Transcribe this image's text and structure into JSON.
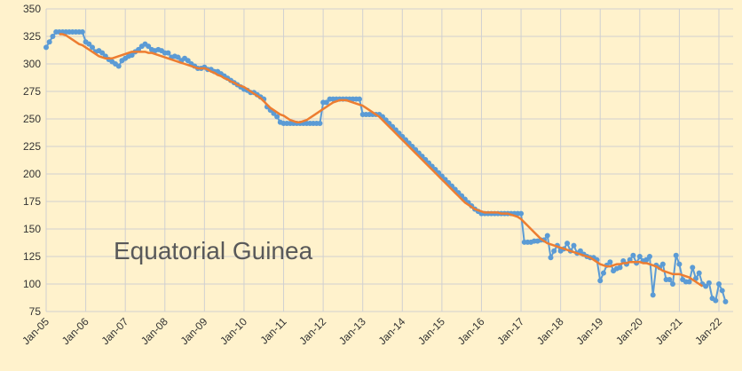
{
  "chart_data": {
    "type": "line",
    "annotation": "Equatorial Guinea",
    "categories": [
      "Jan-05",
      null,
      null,
      null,
      null,
      null,
      null,
      null,
      null,
      null,
      null,
      null,
      "Jan-06",
      null,
      null,
      null,
      null,
      null,
      null,
      null,
      null,
      null,
      null,
      null,
      "Jan-07",
      null,
      null,
      null,
      null,
      null,
      null,
      null,
      null,
      null,
      null,
      null,
      "Jan-08",
      null,
      null,
      null,
      null,
      null,
      null,
      null,
      null,
      null,
      null,
      null,
      "Jan-09",
      null,
      null,
      null,
      null,
      null,
      null,
      null,
      null,
      null,
      null,
      null,
      "Jan-10",
      null,
      null,
      null,
      null,
      null,
      null,
      null,
      null,
      null,
      null,
      null,
      "Jan-11",
      null,
      null,
      null,
      null,
      null,
      null,
      null,
      null,
      null,
      null,
      null,
      "Jan-12",
      null,
      null,
      null,
      null,
      null,
      null,
      null,
      null,
      null,
      null,
      null,
      "Jan-13",
      null,
      null,
      null,
      null,
      null,
      null,
      null,
      null,
      null,
      null,
      null,
      "Jan-14",
      null,
      null,
      null,
      null,
      null,
      null,
      null,
      null,
      null,
      null,
      null,
      "Jan-15",
      null,
      null,
      null,
      null,
      null,
      null,
      null,
      null,
      null,
      null,
      null,
      "Jan-16",
      null,
      null,
      null,
      null,
      null,
      null,
      null,
      null,
      null,
      null,
      null,
      "Jan-17",
      null,
      null,
      null,
      null,
      null,
      null,
      null,
      null,
      null,
      null,
      null,
      "Jan-18",
      null,
      null,
      null,
      null,
      null,
      null,
      null,
      null,
      null,
      null,
      null,
      "Jan-19",
      null,
      null,
      null,
      null,
      null,
      null,
      null,
      null,
      null,
      null,
      null,
      "Jan-20",
      null,
      null,
      null,
      null,
      null,
      null,
      null,
      null,
      null,
      null,
      null,
      "Jan-21",
      null,
      null,
      null,
      null,
      null,
      null,
      null,
      null,
      null,
      null,
      null,
      "Jan-22",
      null,
      null
    ],
    "series": [
      {
        "color": "#5b9bd5",
        "markers": true,
        "values": [
          315,
          320,
          325,
          329,
          329,
          329,
          329,
          329,
          329,
          329,
          329,
          329,
          320,
          318,
          315,
          311,
          312,
          310,
          307,
          304,
          302,
          300,
          298,
          303,
          305,
          307,
          308,
          311,
          313,
          316,
          318,
          316,
          313,
          312,
          313,
          312,
          310,
          310,
          306,
          307,
          306,
          303,
          305,
          303,
          300,
          298,
          296,
          296,
          297,
          295,
          295,
          293,
          293,
          291,
          289,
          287,
          285,
          283,
          281,
          279,
          277,
          276,
          274,
          274,
          272,
          270,
          268,
          261,
          258,
          255,
          252,
          247,
          246,
          246,
          246,
          246,
          246,
          246,
          246,
          246,
          246,
          246,
          246,
          246,
          265,
          265,
          268,
          268,
          268,
          268,
          268,
          268,
          268,
          268,
          268,
          268,
          254,
          254,
          254,
          254,
          254,
          254,
          252,
          249,
          246,
          243,
          240,
          237,
          234,
          231,
          228,
          225,
          222,
          219,
          216,
          213,
          210,
          207,
          204,
          201,
          198,
          195,
          192,
          189,
          186,
          183,
          180,
          177,
          174,
          171,
          168,
          166,
          164,
          164,
          164,
          164,
          164,
          164,
          164,
          164,
          164,
          164,
          164,
          164,
          164,
          138,
          138,
          138,
          139,
          139,
          140,
          140,
          144,
          124,
          130,
          135,
          130,
          132,
          137,
          130,
          135,
          128,
          130,
          127,
          125,
          124,
          124,
          122,
          103,
          110,
          117,
          120,
          112,
          114,
          115,
          121,
          118,
          122,
          126,
          119,
          125,
          121,
          122,
          125,
          90,
          117,
          115,
          118,
          104,
          104,
          100,
          126,
          118,
          104,
          102,
          102,
          115,
          105,
          110,
          100,
          98,
          101,
          87,
          85,
          100,
          94,
          84
        ]
      },
      {
        "color": "#ed7d31",
        "markers": false,
        "values": [
          null,
          null,
          null,
          null,
          327,
          327,
          326,
          324,
          322,
          320,
          318,
          317,
          315,
          313,
          311,
          309,
          307,
          306,
          305,
          305,
          305,
          306,
          307,
          308,
          309,
          310,
          311,
          311,
          311,
          311,
          311,
          310,
          310,
          309,
          308,
          307,
          306,
          305,
          304,
          303,
          302,
          301,
          300,
          299,
          298,
          297,
          296,
          296,
          296,
          295,
          293,
          292,
          290,
          289,
          287,
          286,
          284,
          283,
          281,
          280,
          279,
          277,
          275,
          273,
          271,
          269,
          266,
          263,
          260,
          258,
          256,
          254,
          253,
          251,
          249,
          248,
          247,
          247,
          248,
          249,
          251,
          253,
          255,
          257,
          259,
          261,
          263,
          265,
          266,
          267,
          267,
          267,
          266,
          265,
          264,
          263,
          262,
          260,
          258,
          256,
          254,
          252,
          249,
          246,
          243,
          240,
          237,
          234,
          231,
          228,
          225,
          222,
          219,
          216,
          213,
          210,
          207,
          204,
          201,
          198,
          195,
          192,
          189,
          186,
          183,
          180,
          177,
          174,
          172,
          170,
          168,
          167,
          166,
          165,
          165,
          165,
          165,
          165,
          164,
          164,
          164,
          163,
          162,
          161,
          159,
          156,
          153,
          150,
          147,
          144,
          141,
          139,
          137,
          136,
          135,
          134,
          133,
          132,
          131,
          130,
          129,
          128,
          127,
          126,
          125,
          124,
          122,
          120,
          118,
          117,
          116,
          116,
          117,
          118,
          118,
          119,
          119,
          120,
          120,
          120,
          120,
          119,
          119,
          118,
          117,
          116,
          114,
          112,
          111,
          110,
          109,
          109,
          109,
          108,
          107,
          106,
          104,
          102,
          100,
          98,
          null,
          null,
          null,
          null,
          null,
          null,
          null
        ]
      }
    ],
    "ylim": [
      75,
      350
    ],
    "yticks": [
      75,
      100,
      125,
      150,
      175,
      200,
      225,
      250,
      275,
      300,
      325,
      350
    ],
    "grid": true
  }
}
